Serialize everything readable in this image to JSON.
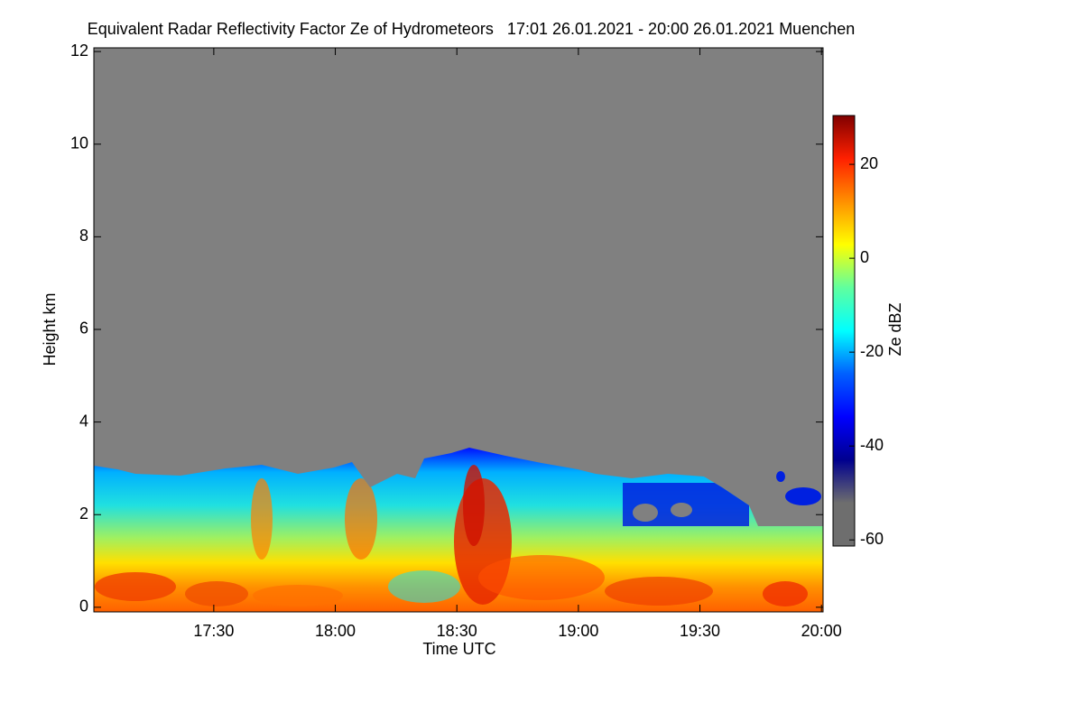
{
  "chart_data": {
    "type": "heatmap",
    "title": "Equivalent Radar Reflectivity Factor Ze of Hydrometeors   17:01 26.01.2021 - 20:00 26.01.2021 Muenchen",
    "x_label": "Time UTC",
    "y_label": "Height km",
    "xlim": [
      1020.4,
      1200.4
    ],
    "xticks": [
      {
        "value": 1050,
        "label": "17:30"
      },
      {
        "value": 1080,
        "label": "18:00"
      },
      {
        "value": 1110,
        "label": "18:30"
      },
      {
        "value": 1140,
        "label": "19:00"
      },
      {
        "value": 1170,
        "label": "19:30"
      },
      {
        "value": 1200,
        "label": "20:00"
      }
    ],
    "ylim": [
      -0.1,
      12.08
    ],
    "yticks": [
      0,
      2,
      4,
      6,
      8,
      10,
      12
    ],
    "background": "#808080",
    "colorbar": {
      "label": "Ze dBZ",
      "lim": [
        -61.3,
        30.4
      ],
      "ticks": [
        -60,
        -40,
        -20,
        0,
        20
      ],
      "colormap": [
        "#6e6e6e",
        "#6e6e6e",
        "#00008f",
        "#0000ff",
        "#0060ff",
        "#00ffff",
        "#60ff9f",
        "#ffff00",
        "#ff9000",
        "#ff2000",
        "#800000"
      ]
    }
  }
}
